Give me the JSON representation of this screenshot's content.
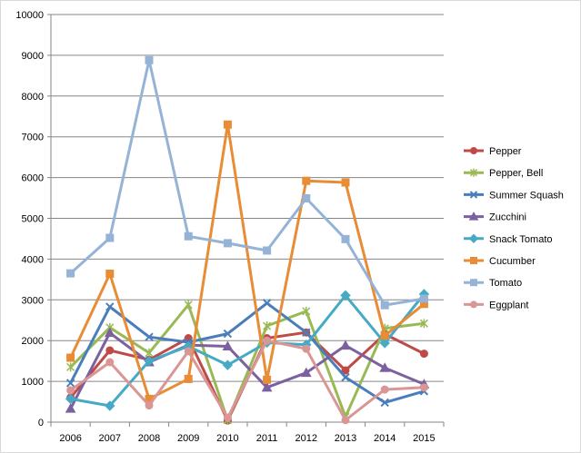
{
  "chart_data": {
    "type": "line",
    "title": "",
    "xlabel": "",
    "ylabel": "",
    "categories": [
      "2006",
      "2007",
      "2008",
      "2009",
      "2010",
      "2011",
      "2012",
      "2013",
      "2014",
      "2015"
    ],
    "ylim": [
      0,
      10000
    ],
    "yticks": [
      0,
      1000,
      2000,
      3000,
      4000,
      5000,
      6000,
      7000,
      8000,
      9000,
      10000
    ],
    "grid": "horizontal",
    "legend_position": "right",
    "series": [
      {
        "name": "Pepper",
        "color": "#be4b48",
        "marker": "circle",
        "values": [
          600,
          1760,
          1530,
          2060,
          40,
          2060,
          2200,
          1270,
          2160,
          1680
        ]
      },
      {
        "name": "Pepper, Bell",
        "color": "#98b954",
        "marker": "star",
        "values": [
          1350,
          2320,
          1700,
          2880,
          50,
          2360,
          2720,
          130,
          2300,
          2420
        ]
      },
      {
        "name": "Summer Squash",
        "color": "#4a7ebb",
        "marker": "x",
        "values": [
          960,
          2830,
          2090,
          1960,
          2170,
          2920,
          2200,
          1100,
          480,
          760
        ]
      },
      {
        "name": "Zucchini",
        "color": "#7d60a0",
        "marker": "triangle",
        "values": [
          330,
          2190,
          1470,
          1890,
          1860,
          850,
          1210,
          1880,
          1330,
          930
        ]
      },
      {
        "name": "Snack Tomato",
        "color": "#46aac5",
        "marker": "diamond",
        "values": [
          570,
          400,
          1500,
          1860,
          1400,
          1950,
          1900,
          3110,
          1940,
          3140
        ]
      },
      {
        "name": "Cucumber",
        "color": "#e88c35",
        "marker": "square",
        "values": [
          1580,
          3640,
          570,
          1060,
          7300,
          1040,
          5920,
          5880,
          2120,
          2900
        ]
      },
      {
        "name": "Tomato",
        "color": "#95b3d7",
        "marker": "square",
        "values": [
          3650,
          4520,
          8880,
          4560,
          4390,
          4210,
          5490,
          4490,
          2870,
          3030
        ]
      },
      {
        "name": "Eggplant",
        "color": "#d99694",
        "marker": "circle",
        "values": [
          780,
          1470,
          410,
          1740,
          110,
          2000,
          1800,
          50,
          800,
          850
        ]
      }
    ]
  }
}
